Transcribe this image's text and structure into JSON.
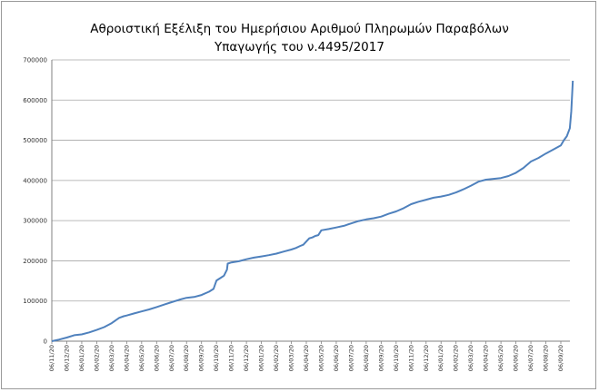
{
  "chart_data": {
    "type": "line",
    "title_lines": [
      "Αθροιστική Εξέλιξη του Ημερήσιου Αριθμού Πληρωμών Παραβόλων",
      "Υπαγωγής του ν.4495/2017"
    ],
    "xlabel": "",
    "ylabel": "",
    "ylim": [
      0,
      700000
    ],
    "yticks": [
      "0",
      "100000",
      "200000",
      "300000",
      "400000",
      "500000",
      "600000",
      "700000"
    ],
    "yvalues": [
      0,
      100000,
      200000,
      300000,
      400000,
      500000,
      600000,
      700000
    ],
    "grid": {
      "horizontal": true,
      "vertical": false
    },
    "legend": "none",
    "line_color": "#4f81bd",
    "grid_color": "#a6a6a6",
    "x_tick_labels": [
      "06/11/20",
      "06/12/20",
      "06/01/20",
      "06/02/20",
      "06/03/20",
      "06/04/20",
      "06/05/20",
      "06/06/20",
      "06/07/20",
      "06/08/20",
      "06/09/20",
      "06/10/20",
      "06/11/20",
      "06/12/20",
      "06/01/20",
      "06/02/20",
      "06/03/20",
      "06/04/20",
      "06/05/20",
      "06/06/20",
      "06/07/20",
      "06/08/20",
      "06/09/20",
      "06/10/20",
      "06/11/20",
      "06/12/20",
      "06/01/20",
      "06/02/20",
      "06/03/20",
      "06/04/20",
      "06/05/20",
      "06/06/20",
      "06/07/20",
      "06/08/20",
      "06/09/20"
    ],
    "series": [
      {
        "x": [
          0,
          0.5,
          1,
          1.5,
          2,
          2.5,
          3,
          3.5,
          4,
          4.5,
          4.8,
          5,
          5.5,
          6,
          6.5,
          7,
          7.5,
          8,
          8.5,
          9,
          9.5,
          10,
          10.5,
          10.8,
          11,
          11.3,
          11.5,
          11.7,
          11.75,
          12,
          12.5,
          13,
          13.5,
          14,
          14.5,
          15,
          15.5,
          16,
          16.3,
          16.6,
          16.8,
          17.2,
          17.4,
          17.6,
          17.8,
          18,
          18.5,
          19,
          19.5,
          20,
          20.5,
          21,
          21.5,
          22,
          22.5,
          23,
          23.5,
          24,
          24.5,
          25,
          25.5,
          26,
          26.5,
          27,
          27.5,
          28,
          28.5,
          29,
          29.5,
          30,
          30.5,
          31,
          31.5,
          32,
          32.5,
          33,
          33.5,
          34,
          34.2,
          34.4,
          34.6,
          34.7,
          34.8
        ],
        "y": [
          0,
          4000,
          9000,
          15000,
          17000,
          22000,
          28000,
          35000,
          45000,
          58000,
          62000,
          64000,
          69000,
          74000,
          79000,
          85000,
          91000,
          97000,
          103000,
          108000,
          110000,
          115000,
          123000,
          130000,
          151000,
          158000,
          163000,
          178000,
          193000,
          196000,
          199000,
          204000,
          208000,
          211000,
          214000,
          218000,
          223000,
          228000,
          232000,
          237000,
          240000,
          256000,
          258000,
          262000,
          264000,
          276000,
          279000,
          283000,
          287000,
          293000,
          299000,
          303000,
          306000,
          310000,
          317000,
          323000,
          331000,
          341000,
          347000,
          352000,
          357000,
          360000,
          364000,
          370000,
          378000,
          387000,
          397000,
          402000,
          404000,
          406000,
          411000,
          419000,
          431000,
          447000,
          456000,
          467000,
          477000,
          487000,
          500000,
          510000,
          530000,
          572000,
          648000
        ]
      }
    ]
  }
}
